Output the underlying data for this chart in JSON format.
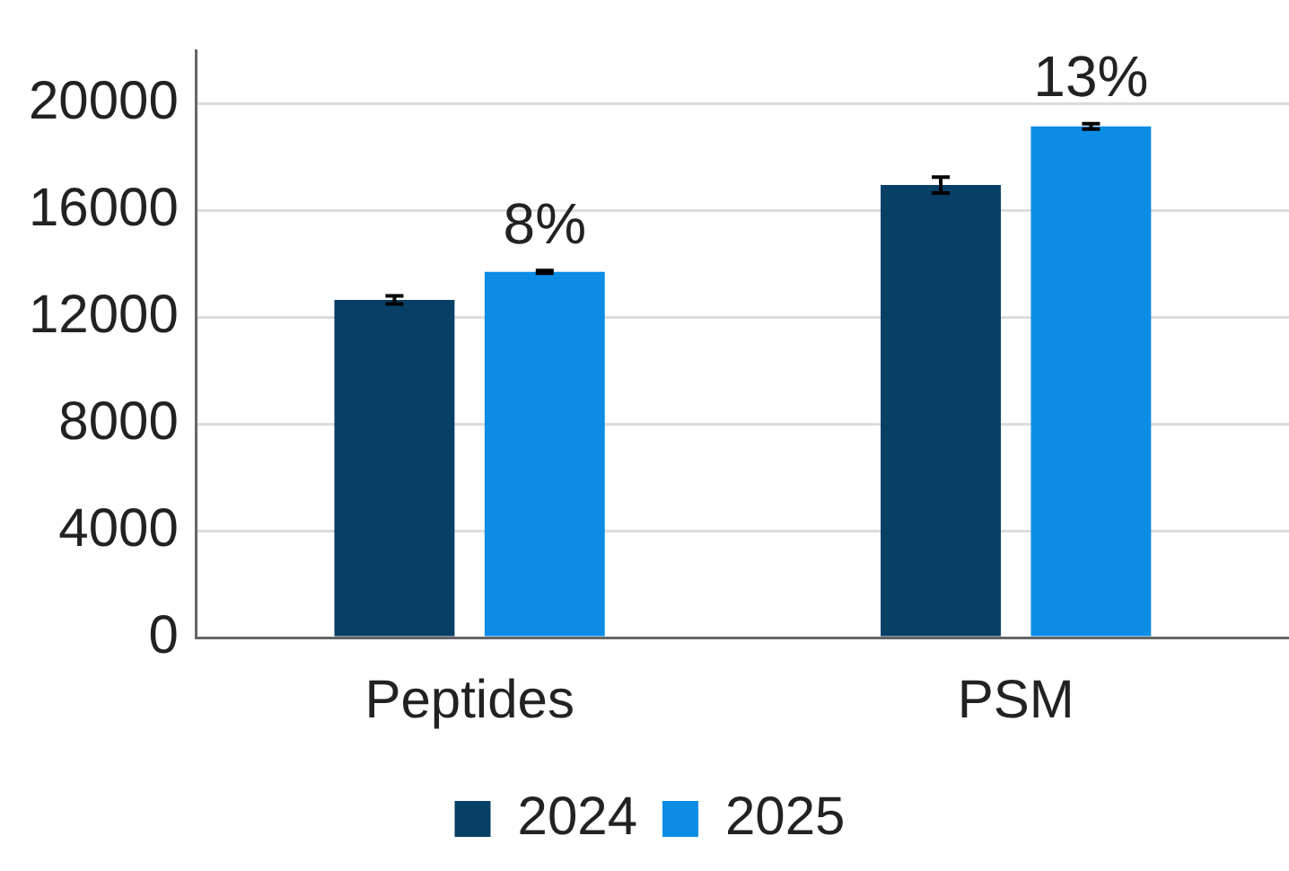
{
  "chart_data": {
    "type": "bar",
    "categories": [
      "Peptides",
      "PSM"
    ],
    "series": [
      {
        "name": "2024",
        "color": "#073f66",
        "values": [
          12650,
          16950
        ],
        "errors": [
          150,
          300
        ]
      },
      {
        "name": "2025",
        "color": "#0b8de6",
        "values": [
          13700,
          19150
        ],
        "errors": [
          50,
          100
        ]
      }
    ],
    "annotations": [
      "8%",
      "13%"
    ],
    "ylim": [
      0,
      22000
    ],
    "yticks": [
      0,
      4000,
      8000,
      12000,
      16000,
      20000
    ],
    "grid": "y",
    "legend": "bottom"
  }
}
